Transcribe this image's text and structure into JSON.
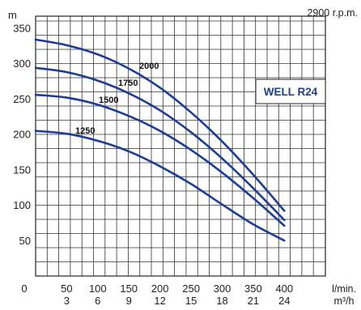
{
  "chart_data": {
    "type": "line",
    "title": "WELL R24",
    "subtitle": "2900 r.p.m.",
    "ylabel": "m",
    "x_units": [
      "l/min.",
      "m³/h"
    ],
    "x_ticks_lmin": [
      "50",
      "100",
      "150",
      "200",
      "250",
      "300",
      "350",
      "400"
    ],
    "x_ticks_m3h": [
      "3",
      "6",
      "9",
      "12",
      "15",
      "18",
      "21",
      "24"
    ],
    "x_origin_label": "0",
    "y_ticks": [
      "50",
      "100",
      "150",
      "200",
      "250",
      "300",
      "350"
    ],
    "xlim": [
      0,
      466
    ],
    "ylim": [
      0,
      367
    ],
    "grid": true,
    "color": "#1a3d96",
    "series": [
      {
        "name": "2000",
        "x": [
          0,
          50,
          100,
          150,
          200,
          250,
          300,
          350,
          400
        ],
        "y": [
          334,
          326,
          313,
          293,
          266,
          231,
          190,
          143,
          92
        ]
      },
      {
        "name": "1750",
        "x": [
          0,
          50,
          100,
          150,
          200,
          250,
          300,
          350,
          400
        ],
        "y": [
          294,
          288,
          276,
          258,
          234,
          203,
          166,
          124,
          79
        ]
      },
      {
        "name": "1500",
        "x": [
          0,
          50,
          100,
          150,
          200,
          250,
          300,
          350,
          400
        ],
        "y": [
          256,
          252,
          242,
          226,
          205,
          178,
          146,
          110,
          71
        ]
      },
      {
        "name": "1250",
        "x": [
          0,
          50,
          100,
          150,
          200,
          250,
          300,
          350,
          400
        ],
        "y": [
          205,
          201,
          191,
          176,
          155,
          130,
          101,
          73,
          50
        ]
      }
    ]
  }
}
